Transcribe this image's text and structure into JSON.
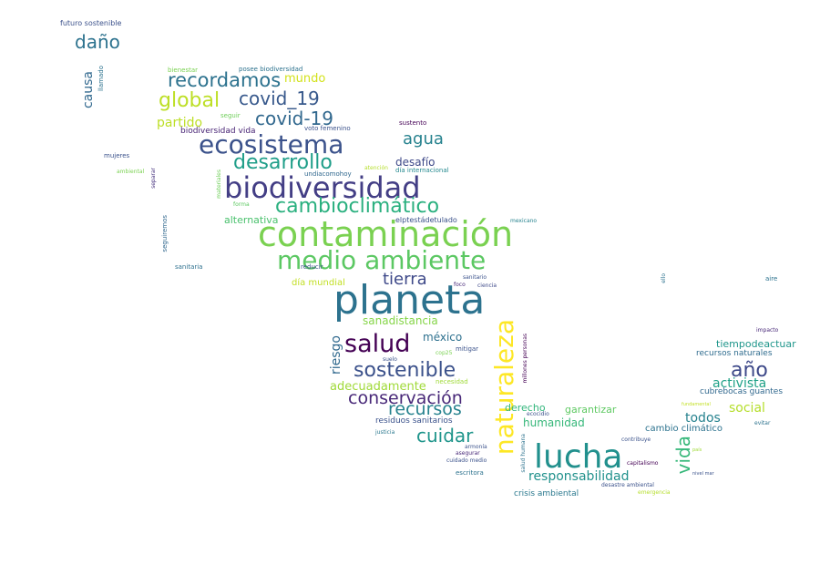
{
  "palette": {
    "dark_purple": "#440154",
    "indigo": "#3b518b",
    "blue": "#2c728e",
    "teal": "#21908d",
    "green": "#27ad81",
    "light_green": "#5cc863",
    "lime": "#aadc32",
    "yellow": "#fde725"
  },
  "words": [
    {
      "text": "planeta",
      "color": "#2c728e"
    },
    {
      "text": "contaminación",
      "color": "#7ad151"
    },
    {
      "text": "biodiversidad",
      "color": "#433e85"
    },
    {
      "text": "naturaleza",
      "color": "#fde725"
    },
    {
      "text": "lucha",
      "color": "#21908d"
    },
    {
      "text": "medio ambiente",
      "color": "#5cc863"
    },
    {
      "text": "ecosistema",
      "color": "#3b528b"
    },
    {
      "text": "salud",
      "color": "#440154"
    },
    {
      "text": "cambioclimático",
      "color": "#2ab07f"
    },
    {
      "text": "desarrollo",
      "color": "#1f9e89"
    },
    {
      "text": "global",
      "color": "#bddf26"
    },
    {
      "text": "sostenible",
      "color": "#3b518b"
    },
    {
      "text": "recordamos",
      "color": "#2c728e"
    },
    {
      "text": "covid_19",
      "color": "#38598c"
    },
    {
      "text": "covid‑19",
      "color": "#31688e"
    },
    {
      "text": "conservación",
      "color": "#482878"
    },
    {
      "text": "recursos",
      "color": "#26828e"
    },
    {
      "text": "año",
      "color": "#3e4989"
    },
    {
      "text": "cuidar",
      "color": "#1f958b"
    },
    {
      "text": "vida",
      "color": "#35b779"
    },
    {
      "text": "daño",
      "color": "#2c728e"
    },
    {
      "text": "agua",
      "color": "#26828e"
    },
    {
      "text": "tierra",
      "color": "#3e4989"
    },
    {
      "text": "responsabilidad",
      "color": "#21918c"
    },
    {
      "text": "partido",
      "color": "#bddf26"
    },
    {
      "text": "mundo",
      "color": "#d2e21b"
    },
    {
      "text": "causa",
      "color": "#31688e"
    },
    {
      "text": "riesgo",
      "color": "#30698e"
    },
    {
      "text": "activista",
      "color": "#1fa187"
    },
    {
      "text": "todos",
      "color": "#26828e"
    },
    {
      "text": "social",
      "color": "#b5de2b"
    },
    {
      "text": "adecuadamente",
      "color": "#a0da39"
    },
    {
      "text": "humanidad",
      "color": "#35b779"
    },
    {
      "text": "sanadistancia",
      "color": "#86d549"
    },
    {
      "text": "méxico",
      "color": "#2d708e"
    },
    {
      "text": "desafío",
      "color": "#3e4989"
    },
    {
      "text": "alternativa",
      "color": "#4ac16d"
    },
    {
      "text": "tiempodeactuar",
      "color": "#1f968b"
    },
    {
      "text": "derecho",
      "color": "#31b57b"
    },
    {
      "text": "garantizar",
      "color": "#5ec962"
    },
    {
      "text": "cambio climático",
      "color": "#2c728e"
    },
    {
      "text": "cubrebocas guantes",
      "color": "#31688e"
    },
    {
      "text": "recursos naturales",
      "color": "#2f6c8e"
    },
    {
      "text": "día mundial",
      "color": "#c2df23"
    },
    {
      "text": "biodiversidad vida",
      "color": "#482475"
    },
    {
      "text": "residuos sanitarios",
      "color": "#3b528b"
    },
    {
      "text": "crisis ambiental",
      "color": "#2a788e"
    },
    {
      "text": "elptestádetulado",
      "color": "#3b528b"
    },
    {
      "text": "futuro sostenible",
      "color": "#3b518b"
    },
    {
      "text": "posee biodiversidad",
      "color": "#2c728e"
    },
    {
      "text": "voto femenino",
      "color": "#3b528b"
    },
    {
      "text": "día internacional",
      "color": "#23888e"
    },
    {
      "text": "undiacomohoy",
      "color": "#31688e"
    },
    {
      "text": "sustento",
      "color": "#440154"
    },
    {
      "text": "llamado",
      "color": "#2c728e"
    },
    {
      "text": "bienestar",
      "color": "#7ad151"
    },
    {
      "text": "seguir",
      "color": "#6ece58"
    },
    {
      "text": "mujeres",
      "color": "#3b528b"
    },
    {
      "text": "ambiental",
      "color": "#7ad151"
    },
    {
      "text": "separar",
      "color": "#46327e"
    },
    {
      "text": "materiales",
      "color": "#6ece58"
    },
    {
      "text": "forma",
      "color": "#5ec962"
    },
    {
      "text": "atención",
      "color": "#b5de2b"
    },
    {
      "text": "mexicano",
      "color": "#26828e"
    },
    {
      "text": "seguiremos",
      "color": "#31688e"
    },
    {
      "text": "sanitaria",
      "color": "#2d708e"
    },
    {
      "text": "reducir",
      "color": "#3b528b"
    },
    {
      "text": "foco",
      "color": "#482878"
    },
    {
      "text": "sanitario",
      "color": "#3b528b"
    },
    {
      "text": "ciencia",
      "color": "#3e4989"
    },
    {
      "text": "ello",
      "color": "#2c728e"
    },
    {
      "text": "aire",
      "color": "#2c728e"
    },
    {
      "text": "impacto",
      "color": "#482878"
    },
    {
      "text": "mitigar",
      "color": "#3b528b"
    },
    {
      "text": "cop25",
      "color": "#7ad151"
    },
    {
      "text": "suelo",
      "color": "#3b528b"
    },
    {
      "text": "millones personas",
      "color": "#440154"
    },
    {
      "text": "necesidad",
      "color": "#a0da39"
    },
    {
      "text": "ecocidio",
      "color": "#3b528b"
    },
    {
      "text": "justicia",
      "color": "#2a788e"
    },
    {
      "text": "armonía",
      "color": "#3b528b"
    },
    {
      "text": "asegurar",
      "color": "#482878"
    },
    {
      "text": "cuidado medio",
      "color": "#3b528b"
    },
    {
      "text": "escritora",
      "color": "#2c728e"
    },
    {
      "text": "salud humana",
      "color": "#2c728e"
    },
    {
      "text": "contribuye",
      "color": "#3b528b"
    },
    {
      "text": "capitalismo",
      "color": "#440154"
    },
    {
      "text": "desastre ambiental",
      "color": "#3b528b"
    },
    {
      "text": "emergencia",
      "color": "#b5de2b"
    },
    {
      "text": "nivel mar",
      "color": "#3b528b"
    },
    {
      "text": "país",
      "color": "#a0da39"
    },
    {
      "text": "fundamental",
      "color": "#c2df23"
    },
    {
      "text": "evitar",
      "color": "#2c728e"
    }
  ]
}
